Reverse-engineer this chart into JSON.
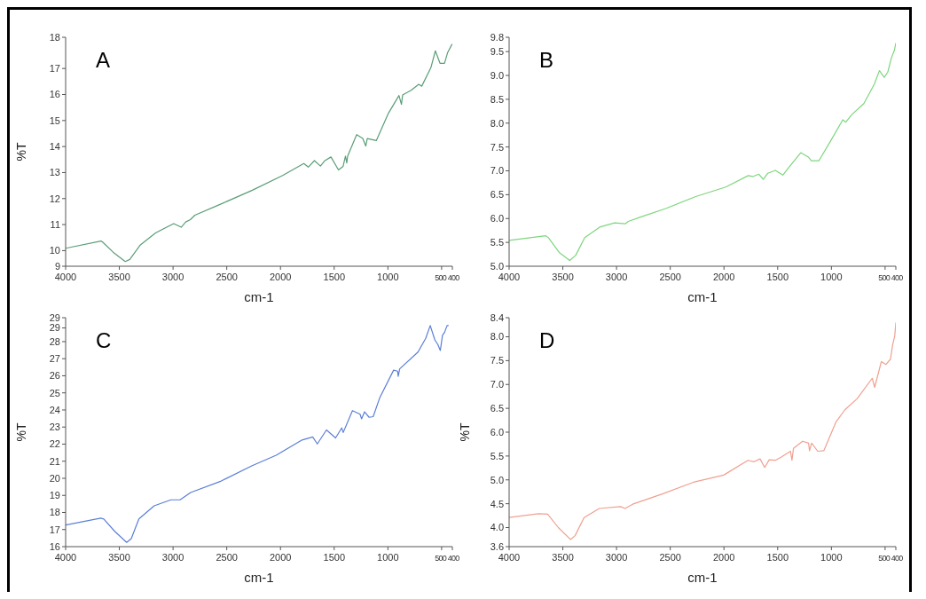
{
  "chart_data": [
    {
      "type": "line",
      "title": "A",
      "xlabel": "cm-1",
      "ylabel": "%T",
      "xlim": [
        4000,
        400
      ],
      "xticks": [
        4000,
        3500,
        3000,
        2500,
        2000,
        1500,
        1000,
        500,
        400
      ],
      "ylim": [
        9.4,
        18.2
      ],
      "yticks": [
        {
          "value": 9.4,
          "label": "9"
        },
        10,
        11,
        12,
        13,
        14,
        15,
        16,
        17,
        {
          "value": 18.2,
          "label": "18"
        }
      ],
      "marker": "none",
      "line_style": "solid",
      "x": [
        4000,
        3670,
        3656,
        3558,
        3445,
        3403,
        3304,
        3163,
        2994,
        2924,
        2882,
        2839,
        2797,
        2544,
        2262,
        1980,
        1783,
        1741,
        1684,
        1628,
        1586,
        1530,
        1460,
        1417,
        1395,
        1383,
        1375,
        1291,
        1234,
        1206,
        1192,
        1108,
        995,
        897,
        874,
        863,
        784,
        713,
        685,
        600,
        558,
        515,
        473,
        445,
        402
      ],
      "series": [
        {
          "color": "#5a9e78",
          "values": [
            10.09,
            10.37,
            10.33,
            9.94,
            9.58,
            9.66,
            10.22,
            10.68,
            11.04,
            10.9,
            11.1,
            11.19,
            11.36,
            11.81,
            12.32,
            12.89,
            13.35,
            13.21,
            13.46,
            13.25,
            13.46,
            13.6,
            13.1,
            13.24,
            13.63,
            13.37,
            13.63,
            14.46,
            14.31,
            14.02,
            14.31,
            14.23,
            15.28,
            15.96,
            15.62,
            15.98,
            16.16,
            16.39,
            16.32,
            17.03,
            17.68,
            17.2,
            17.2,
            17.6,
            17.94
          ]
        }
      ]
    },
    {
      "type": "line",
      "title": "B",
      "xlabel": "cm-1",
      "xlim": [
        4000,
        400
      ],
      "xticks": [
        4000,
        3500,
        3000,
        2500,
        2000,
        1500,
        1000,
        500,
        400
      ],
      "ylim": [
        5.0,
        9.8
      ],
      "yticks": [
        {
          "value": 5,
          "label": "5.0"
        },
        5.5,
        {
          "value": 6,
          "label": "6.0"
        },
        6.5,
        {
          "value": 7,
          "label": "7.0"
        },
        7.5,
        {
          "value": 8,
          "label": "8.0"
        },
        8.5,
        {
          "value": 9,
          "label": "9.0"
        },
        9.5,
        9.8
      ],
      "marker": "none",
      "line_style": "solid",
      "x": [
        4000,
        3659,
        3631,
        3534,
        3436,
        3380,
        3296,
        3157,
        3017,
        2919,
        2891,
        2766,
        2542,
        2263,
        1983,
        1774,
        1732,
        1676,
        1634,
        1592,
        1522,
        1452,
        1396,
        1285,
        1215,
        1187,
        1117,
        1006,
        894,
        866,
        810,
        698,
        600,
        553,
        508,
        475,
        441,
        413,
        400
      ],
      "series": [
        {
          "color": "#7ed67e",
          "values": [
            5.54,
            5.64,
            5.59,
            5.29,
            5.12,
            5.23,
            5.6,
            5.82,
            5.91,
            5.89,
            5.94,
            6.04,
            6.21,
            6.46,
            6.66,
            6.9,
            6.88,
            6.93,
            6.82,
            6.95,
            7.01,
            6.91,
            7.07,
            7.38,
            7.29,
            7.21,
            7.21,
            7.63,
            8.07,
            8.02,
            8.18,
            8.41,
            8.82,
            9.1,
            8.96,
            9.07,
            9.37,
            9.53,
            9.68
          ]
        }
      ]
    },
    {
      "type": "line",
      "title": "C",
      "xlabel": "cm-1",
      "ylabel": "%T",
      "xlim": [
        4000,
        400
      ],
      "xticks": [
        4000,
        3500,
        3000,
        2500,
        2000,
        1500,
        1000,
        500,
        400
      ],
      "ylim": [
        16,
        29.4
      ],
      "yticks": [
        16,
        17,
        18,
        19,
        20,
        21,
        22,
        23,
        24,
        25,
        26,
        27,
        28,
        {
          "value": 28.8,
          "label": "29"
        },
        {
          "value": 29.4,
          "label": "29"
        }
      ],
      "marker": "none",
      "line_style": "solid",
      "x": [
        4000,
        3673,
        3645,
        3545,
        3432,
        3389,
        3318,
        3176,
        3020,
        2935,
        2836,
        2552,
        2268,
        2040,
        1799,
        1700,
        1657,
        1572,
        1487,
        1430,
        1416,
        1330,
        1259,
        1245,
        1217,
        1175,
        1137,
        1075,
        947,
        910,
        904,
        890,
        720,
        648,
        606,
        563,
        535,
        512,
        492,
        472,
        449,
        435
      ],
      "series": [
        {
          "color": "#5b7fd6",
          "values": [
            17.27,
            17.67,
            17.62,
            16.91,
            16.25,
            16.47,
            17.62,
            18.39,
            18.74,
            18.74,
            19.17,
            19.84,
            20.73,
            21.35,
            22.24,
            22.42,
            22.01,
            22.83,
            22.36,
            22.95,
            22.68,
            23.96,
            23.75,
            23.48,
            23.89,
            23.57,
            23.61,
            24.73,
            26.33,
            26.27,
            25.97,
            26.41,
            27.39,
            28.19,
            28.94,
            28.1,
            27.83,
            27.48,
            28.37,
            28.55,
            28.94,
            28.94
          ]
        }
      ]
    },
    {
      "type": "line",
      "title": "D",
      "xlabel": "cm-1",
      "ylabel": "%T",
      "xlim": [
        4000,
        400
      ],
      "xticks": [
        4000,
        3500,
        3000,
        2500,
        2000,
        1500,
        1000,
        500,
        400
      ],
      "ylim": [
        3.6,
        8.4
      ],
      "yticks": [
        3.6,
        {
          "value": 4,
          "label": "4.0"
        },
        4.5,
        {
          "value": 5,
          "label": "5.0"
        },
        5.5,
        {
          "value": 6,
          "label": "6.0"
        },
        6.5,
        {
          "value": 7,
          "label": "7.0"
        },
        7.5,
        {
          "value": 8,
          "label": "8.0"
        },
        8.4
      ],
      "marker": "none",
      "line_style": "solid",
      "x": [
        4000,
        3726,
        3641,
        3542,
        3429,
        3386,
        3302,
        3161,
        2963,
        2921,
        2850,
        2568,
        2285,
        2003,
        1777,
        1720,
        1664,
        1621,
        1579,
        1522,
        1466,
        1381,
        1367,
        1353,
        1268,
        1212,
        1204,
        1184,
        1127,
        1071,
        958,
        874,
        761,
        620,
        597,
        535,
        492,
        450,
        430,
        410,
        400
      ],
      "series": [
        {
          "color": "#f0a090",
          "values": [
            4.21,
            4.29,
            4.28,
            4.0,
            3.75,
            3.83,
            4.21,
            4.4,
            4.44,
            4.4,
            4.49,
            4.71,
            4.95,
            5.1,
            5.41,
            5.38,
            5.44,
            5.26,
            5.42,
            5.41,
            5.48,
            5.6,
            5.41,
            5.66,
            5.81,
            5.77,
            5.61,
            5.77,
            5.6,
            5.61,
            6.21,
            6.47,
            6.7,
            7.13,
            6.94,
            7.48,
            7.42,
            7.53,
            7.83,
            8.02,
            8.3
          ]
        }
      ]
    }
  ]
}
